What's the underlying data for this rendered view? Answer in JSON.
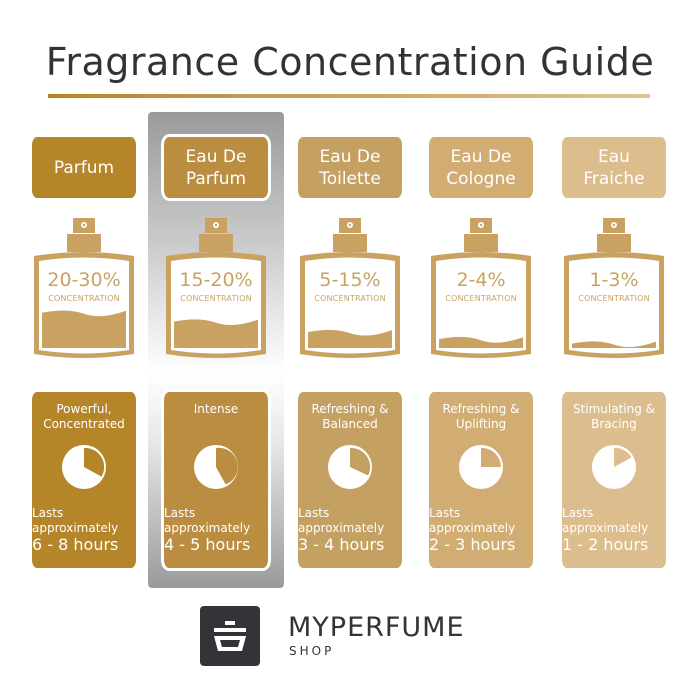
{
  "title": "Fragrance Concentration Guide",
  "bottle_color": "#c9a262",
  "highlighted_index": 1,
  "columns": [
    {
      "name_line1": "Parfum",
      "name_line2": "",
      "concentration": "20-30%",
      "concentration_label": "CONCENTRATION",
      "fill_level": 0.4,
      "description_line1": "Powerful,",
      "description_line2": "Concentrated",
      "lasts_line1": "Lasts",
      "lasts_line2": "approximately",
      "hours": "6 - 8 hours",
      "clock_empty_fraction": 0.33,
      "color": "#b5852a"
    },
    {
      "name_line1": "Eau De",
      "name_line2": "Parfum",
      "concentration": "15-20%",
      "concentration_label": "CONCENTRATION",
      "fill_level": 0.3,
      "description_line1": "Intense",
      "description_line2": "",
      "lasts_line1": "Lasts",
      "lasts_line2": "approximately",
      "hours": "4 - 5 hours",
      "clock_empty_fraction": 0.42,
      "color": "#bb8d40"
    },
    {
      "name_line1": "Eau De",
      "name_line2": "Toilette",
      "concentration": "5-15%",
      "concentration_label": "CONCENTRATION",
      "fill_level": 0.18,
      "description_line1": "Refreshing &",
      "description_line2": "Balanced",
      "lasts_line1": "Lasts",
      "lasts_line2": "approximately",
      "hours": "3 - 4 hours",
      "clock_empty_fraction": 0.32,
      "color": "#c4a062"
    },
    {
      "name_line1": "Eau De",
      "name_line2": "Cologne",
      "concentration": "2-4%",
      "concentration_label": "CONCENTRATION",
      "fill_level": 0.1,
      "description_line1": "Refreshing &",
      "description_line2": "Uplifting",
      "lasts_line1": "Lasts",
      "lasts_line2": "approximately",
      "hours": "2 - 3 hours",
      "clock_empty_fraction": 0.25,
      "color": "#d2ad73"
    },
    {
      "name_line1": "Eau",
      "name_line2": "Fraiche",
      "concentration": "1-3%",
      "concentration_label": "CONCENTRATION",
      "fill_level": 0.05,
      "description_line1": "Stimulating &",
      "description_line2": "Bracing",
      "lasts_line1": "Lasts",
      "lasts_line2": "approximately",
      "hours": "1 - 2 hours",
      "clock_empty_fraction": 0.17,
      "color": "#dcbd8d"
    }
  ],
  "logo": {
    "brand": "MYPERFUME",
    "sub": "SHOP"
  }
}
